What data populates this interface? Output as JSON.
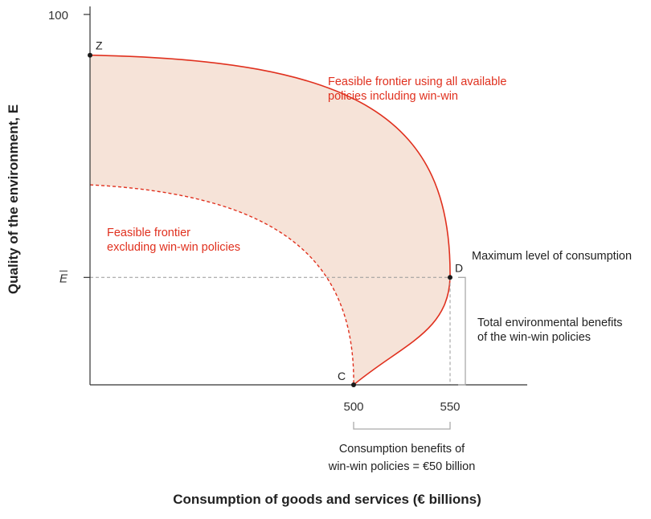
{
  "chart_data": {
    "type": "area",
    "xlabel": "Consumption of goods and services (€ billions)",
    "ylabel": "Quality of the environment, E",
    "y_tick_top": "100",
    "ebar_label": "E",
    "x_ticks": [
      {
        "value": 500,
        "label": "500"
      },
      {
        "value": 550,
        "label": "550"
      }
    ],
    "series": [
      {
        "name": "Feasible frontier using all available policies including win-win",
        "style": "solid",
        "color": "#e0301e"
      },
      {
        "name": "Feasible frontier excluding win-win policies",
        "style": "dashed",
        "color": "#e0301e"
      }
    ],
    "points": [
      {
        "label": "Z",
        "x": 0,
        "y": 89
      },
      {
        "label": "D",
        "x": 550,
        "y": 29
      },
      {
        "label": "C",
        "x": 500,
        "y": 0
      }
    ],
    "ebar_value": 29,
    "frontier_left_y_excluding": 54,
    "annotations": {
      "frontier_all": [
        "Feasible frontier using all available",
        "policies including win-win"
      ],
      "frontier_excluding": [
        "Feasible frontier",
        "excluding win-win policies"
      ],
      "max_consumption": "Maximum level of consumption",
      "env_benefits": [
        "Total environmental benefits",
        "of the win-win policies"
      ],
      "consumption_benefits": [
        "Consumption benefits of",
        "win-win policies = €50 billion"
      ]
    },
    "grid": false,
    "colors": {
      "frontier": "#e0301e",
      "fill": "#f6e3d8",
      "axis": "#333333",
      "guide": "#999999",
      "bracket": "#aaaaaa"
    }
  }
}
